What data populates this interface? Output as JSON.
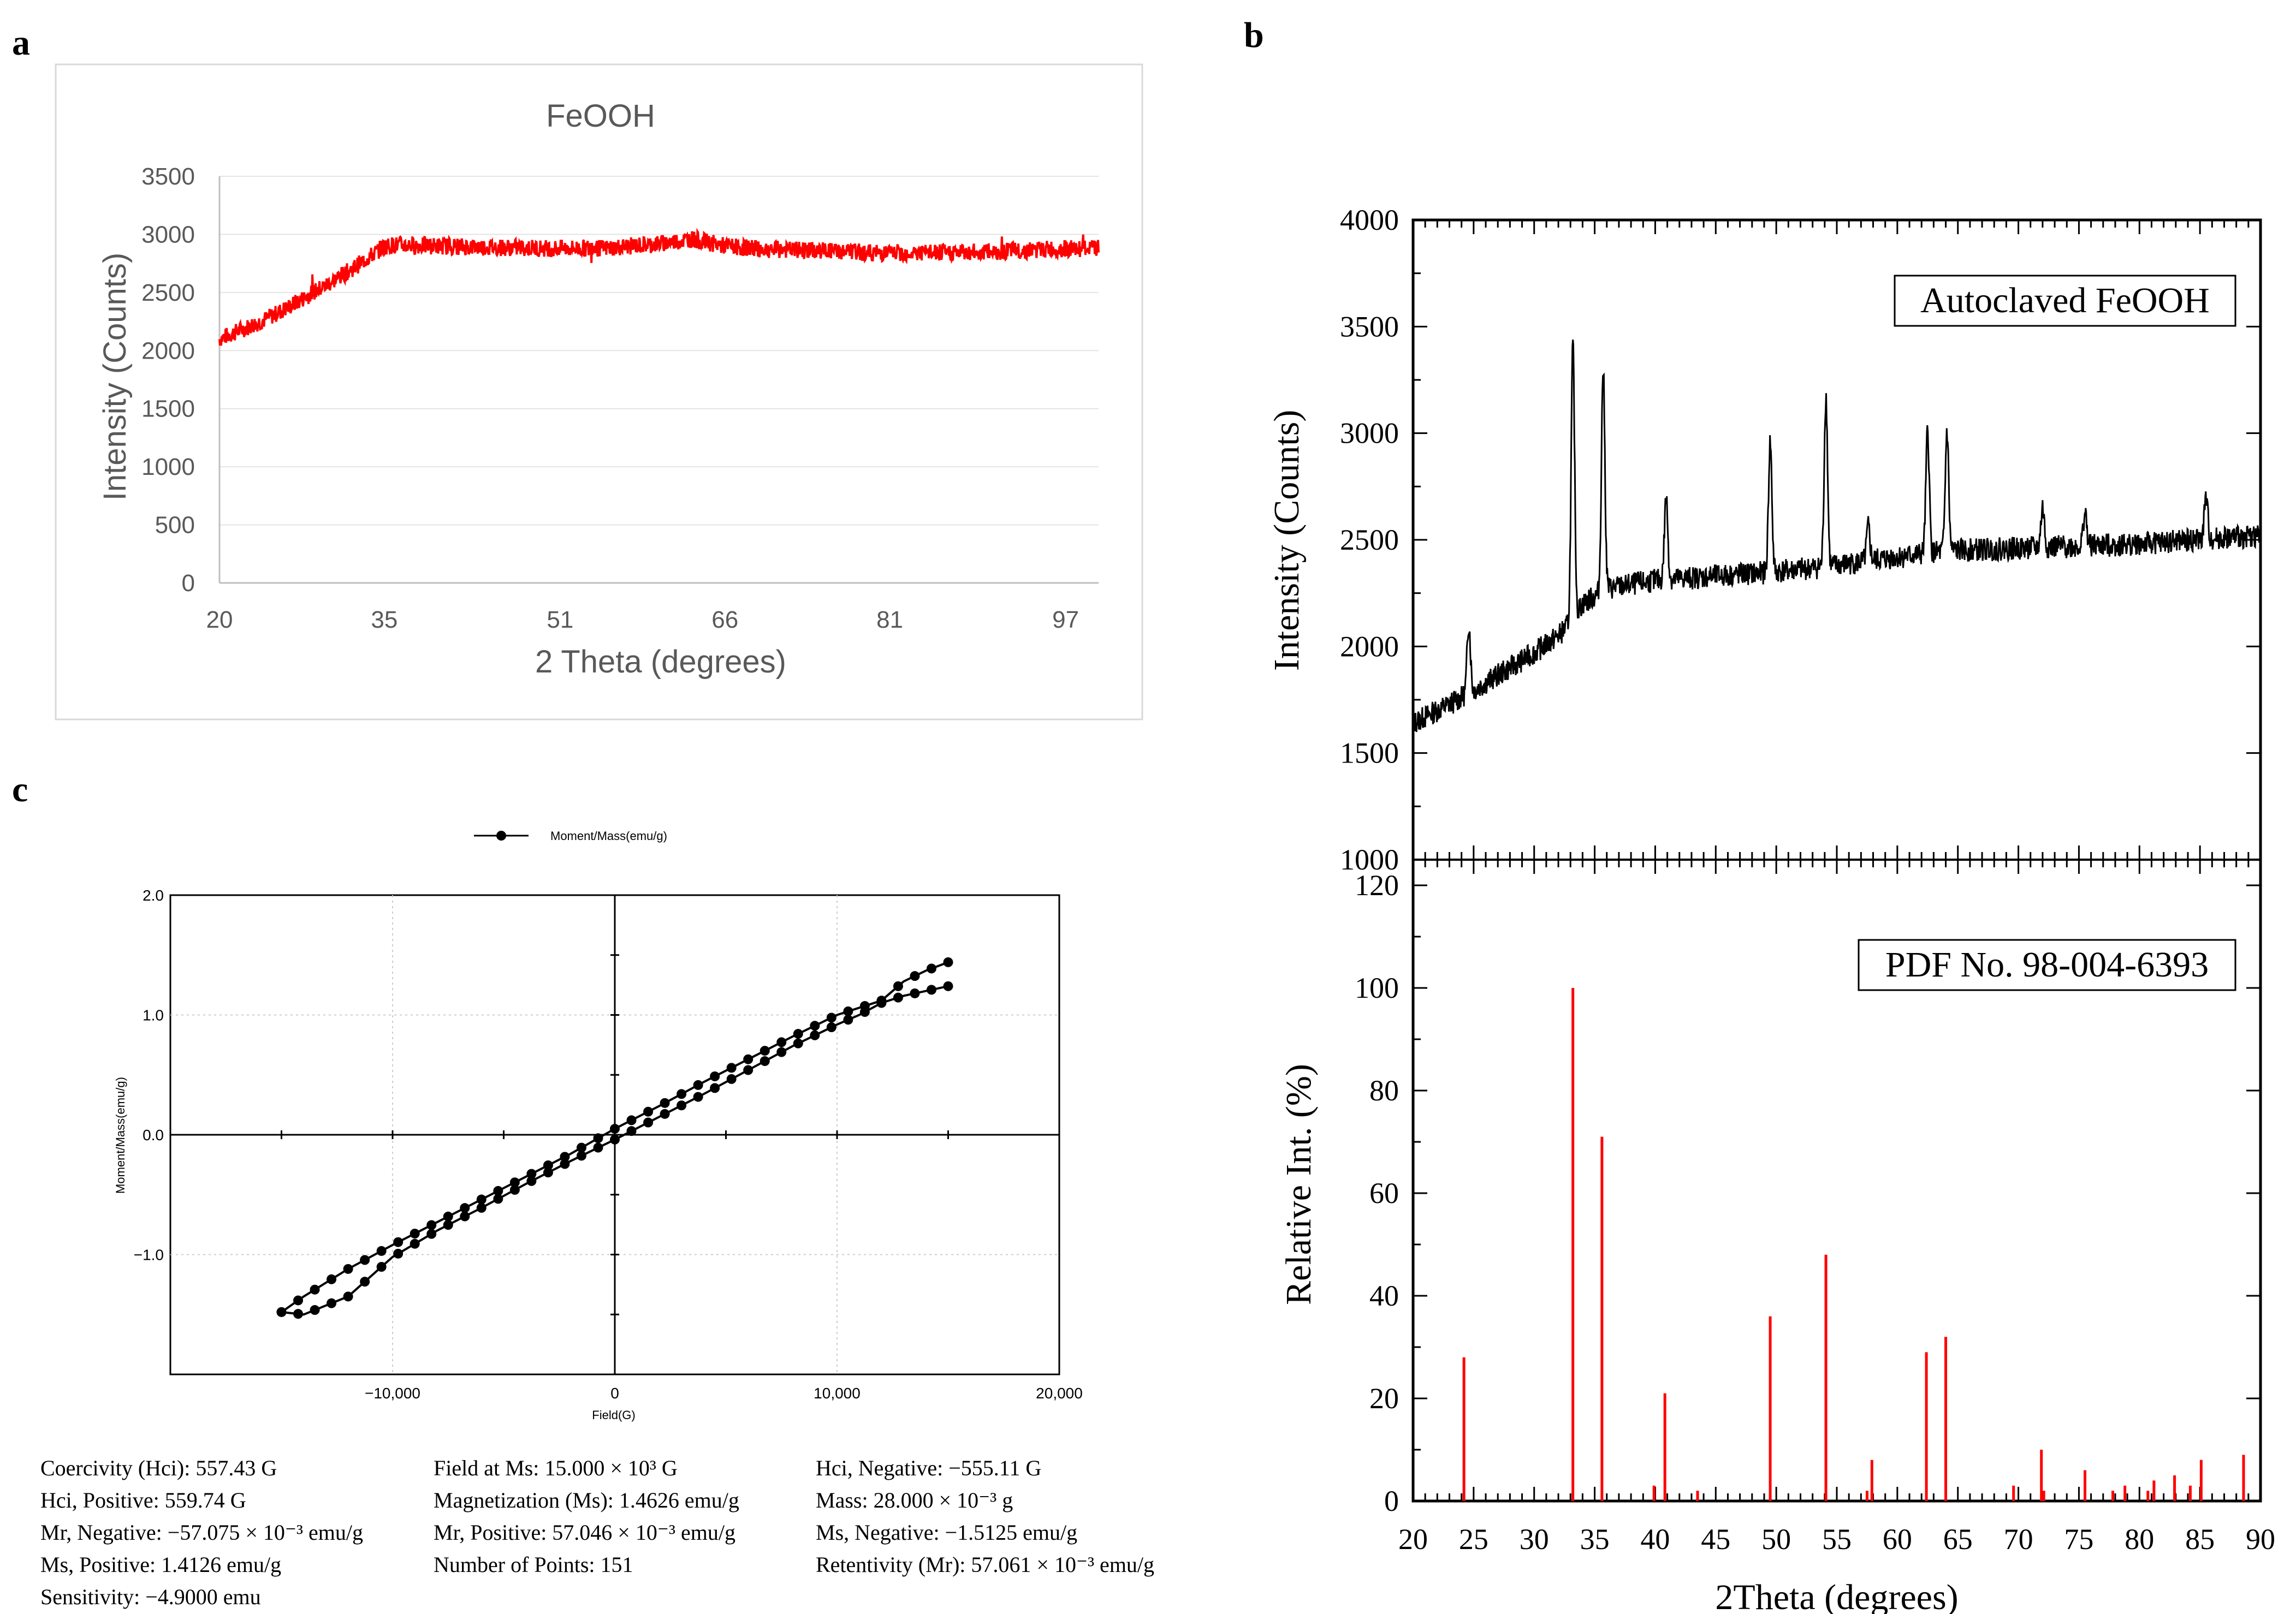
{
  "panel_labels": {
    "a": "a",
    "b": "b",
    "c": "c"
  },
  "colors": {
    "red": "#ff0000",
    "black": "#000000",
    "grey_text": "#595959",
    "grid": "#d9d9d9",
    "frame": "#d9d9d9"
  },
  "chart_data": [
    {
      "id": "a",
      "type": "line",
      "title": "FeOOH",
      "xlabel": "2 Theta (degrees)",
      "ylabel": "Intensity (Counts)",
      "xlim": [
        20,
        100
      ],
      "ylim": [
        0,
        3500
      ],
      "x_tick_labels": [
        "20",
        "35",
        "51",
        "66",
        "81",
        "97"
      ],
      "x_tick_values": [
        20,
        35,
        51,
        66,
        81,
        97
      ],
      "y_tick_labels": [
        "0",
        "500",
        "1000",
        "1500",
        "2000",
        "2500",
        "3000",
        "3500"
      ],
      "y_tick_values": [
        0,
        500,
        1000,
        1500,
        2000,
        2500,
        3000,
        3500
      ],
      "series": [
        {
          "name": "FeOOH",
          "color": "#ff0000",
          "x": [
            20,
            22,
            24,
            26,
            28,
            30,
            32,
            34,
            35,
            36,
            40,
            45,
            50,
            55,
            60,
            63,
            66,
            70,
            75,
            80,
            85,
            90,
            95,
            98,
            100
          ],
          "y": [
            2100,
            2180,
            2260,
            2360,
            2470,
            2580,
            2700,
            2830,
            2900,
            2910,
            2900,
            2890,
            2880,
            2880,
            2920,
            2960,
            2900,
            2870,
            2860,
            2840,
            2840,
            2850,
            2870,
            2880,
            2880
          ]
        }
      ]
    },
    {
      "id": "b_top",
      "type": "line",
      "legend": "Autoclaved FeOOH",
      "ylabel": "Intensity (Counts)",
      "xlim": [
        20,
        90
      ],
      "ylim": [
        1000,
        4000
      ],
      "y_tick_labels": [
        "1000",
        "1500",
        "2000",
        "2500",
        "3000",
        "3500",
        "4000"
      ],
      "y_tick_values": [
        1000,
        1500,
        2000,
        2500,
        3000,
        3500,
        4000
      ],
      "series": [
        {
          "name": "Autoclaved FeOOH",
          "color": "#000000",
          "baseline_x": [
            20,
            22,
            24,
            26,
            28,
            30,
            32,
            33,
            34,
            36,
            40,
            45,
            50,
            55,
            60,
            65,
            70,
            75,
            80,
            85,
            90
          ],
          "baseline_y": [
            1640,
            1700,
            1760,
            1830,
            1900,
            1970,
            2050,
            2110,
            2200,
            2270,
            2310,
            2330,
            2350,
            2380,
            2420,
            2450,
            2460,
            2470,
            2480,
            2500,
            2520
          ],
          "peaks_x": [
            24.6,
            33.2,
            35.7,
            40.9,
            49.5,
            54.1,
            57.6,
            62.5,
            64.1,
            72.0,
            75.5,
            85.5
          ],
          "peaks_y": [
            2110,
            3410,
            3310,
            2700,
            2960,
            3170,
            2560,
            3010,
            3010,
            2650,
            2630,
            2700
          ]
        }
      ]
    },
    {
      "id": "b_bottom",
      "type": "bar",
      "legend": "PDF No. 98-004-6393",
      "xlabel": "2Theta (degrees)",
      "ylabel": "Relative Int. (%)",
      "xlim": [
        20,
        90
      ],
      "ylim": [
        0,
        125
      ],
      "x_tick_labels": [
        "20",
        "25",
        "30",
        "35",
        "40",
        "45",
        "50",
        "55",
        "60",
        "65",
        "70",
        "75",
        "80",
        "85",
        "90"
      ],
      "x_tick_values": [
        20,
        25,
        30,
        35,
        40,
        45,
        50,
        55,
        60,
        65,
        70,
        75,
        80,
        85,
        90
      ],
      "y_tick_labels": [
        "0",
        "20",
        "40",
        "60",
        "80",
        "100",
        "120"
      ],
      "y_tick_values": [
        0,
        20,
        40,
        60,
        80,
        100,
        120
      ],
      "x": [
        24.2,
        33.2,
        35.6,
        39.9,
        40.8,
        43.5,
        49.5,
        54.1,
        57.5,
        57.9,
        62.4,
        64.0,
        69.6,
        71.9,
        72.1,
        75.5,
        77.8,
        78.8,
        80.7,
        81.2,
        82.9,
        84.2,
        85.1,
        88.6
      ],
      "values": [
        28,
        100,
        71,
        3,
        21,
        2,
        36,
        48,
        2,
        8,
        29,
        32,
        3,
        10,
        2,
        6,
        2,
        3,
        2,
        4,
        5,
        3,
        8,
        9
      ],
      "color": "#ff0000"
    },
    {
      "id": "c",
      "type": "scatter",
      "legend": "Moment/Mass(emu/g)",
      "xlabel": "Field(G)",
      "ylabel": "Moment/Mass(emu/g)",
      "xlim": [
        -20000,
        20000
      ],
      "ylim": [
        -2,
        2
      ],
      "x_tick_labels": [
        "−10,000",
        "0",
        "10,000",
        "20,000"
      ],
      "x_tick_values": [
        -10000,
        0,
        10000,
        20000
      ],
      "y_tick_labels": [
        "2.0",
        "1.0",
        "0.0",
        "−1.0"
      ],
      "y_tick_values": [
        2,
        1,
        0,
        -1
      ],
      "series": [
        {
          "name": "Moment/Mass(emu/g)",
          "upper_x": [
            -15000,
            -14000,
            -12000,
            -10000,
            -8000,
            -6000,
            -4000,
            -2000,
            0,
            2000,
            4000,
            6000,
            8000,
            10000,
            11000,
            12000,
            13000,
            14000,
            15000
          ],
          "upper_y": [
            -1.48,
            -1.35,
            -1.12,
            -0.92,
            -0.73,
            -0.54,
            -0.35,
            -0.16,
            0.05,
            0.24,
            0.44,
            0.63,
            0.82,
            1.0,
            1.06,
            1.12,
            1.28,
            1.37,
            1.44
          ],
          "lower_x": [
            -15000,
            -14000,
            -12000,
            -10000,
            -8000,
            -6000,
            -4000,
            -2000,
            0,
            2000,
            4000,
            6000,
            8000,
            10000,
            11000,
            12000,
            13000,
            14000,
            15000
          ],
          "lower_y": [
            -1.48,
            -1.5,
            -1.35,
            -1.02,
            -0.8,
            -0.61,
            -0.41,
            -0.22,
            -0.04,
            0.15,
            0.34,
            0.54,
            0.74,
            0.92,
            1.0,
            1.1,
            1.16,
            1.2,
            1.24
          ]
        }
      ]
    }
  ],
  "stats": [
    {
      "text": "Coercivity (Hci): 557.43 G"
    },
    {
      "text": "Hci, Positive: 559.74 G"
    },
    {
      "text": "Mr, Negative: −57.075 × 10⁻³ emu/g"
    },
    {
      "text": "Ms, Positive: 1.4126 emu/g"
    },
    {
      "text": "Sensitivity: −4.9000 emu"
    },
    {
      "text": "Field at Ms: 15.000 × 10³ G"
    },
    {
      "text": "Magnetization (Ms): 1.4626 emu/g"
    },
    {
      "text": "Mr, Positive: 57.046 × 10⁻³ emu/g"
    },
    {
      "text": "Number of Points: 151"
    },
    {
      "text": "Hci, Negative: −555.11 G"
    },
    {
      "text": "Mass: 28.000 × 10⁻³ g"
    },
    {
      "text": "Ms, Negative: −1.5125 emu/g"
    },
    {
      "text": "Retentivity (Mr): 57.061 × 10⁻³ emu/g"
    }
  ]
}
